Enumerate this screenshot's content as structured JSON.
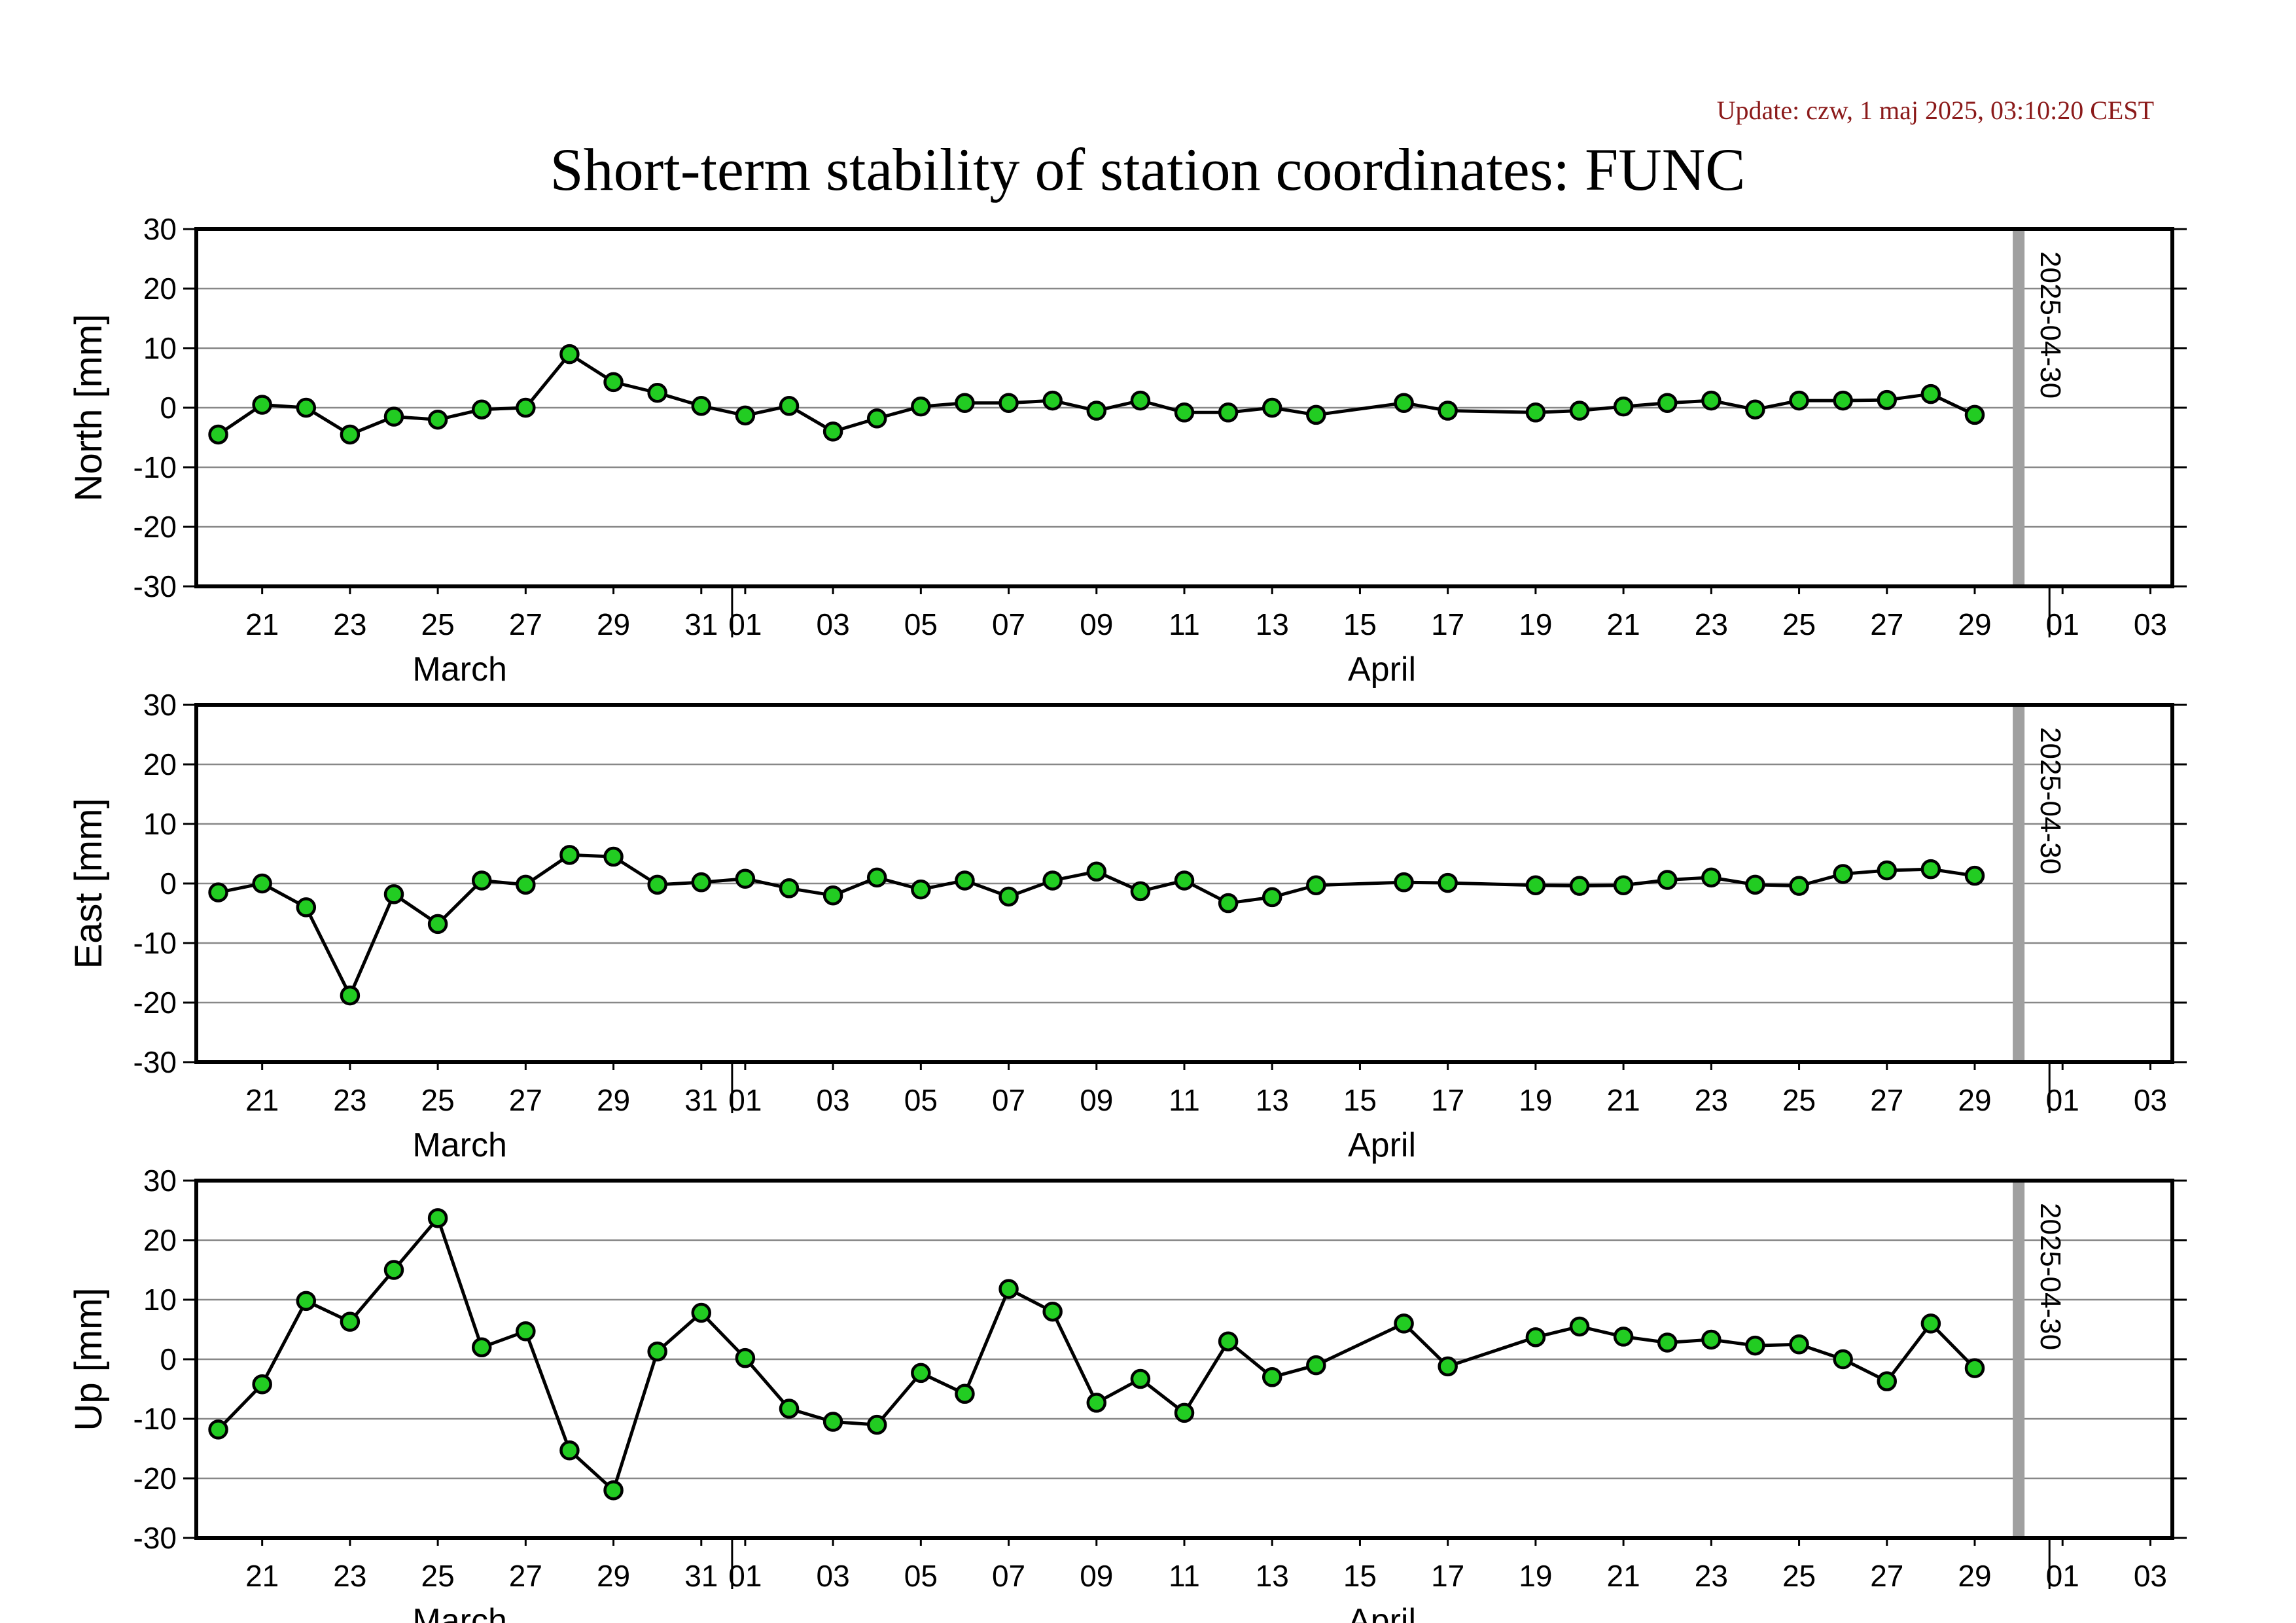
{
  "update_text": "Update: czw, 1 maj 2025, 03:10:20 CEST",
  "title": "Short-term stability of station coordinates: FUNC",
  "colors": {
    "point_fill": "#22cc22",
    "point_stroke": "#000000",
    "line": "#000000",
    "grid": "#888888",
    "marker": "#a0a0a0",
    "update": "#8b1a1a"
  },
  "chart_data": [
    {
      "type": "line",
      "ylabel": "North [mm]",
      "ylim": [
        -30,
        30
      ],
      "yticks": [
        30,
        20,
        10,
        0,
        -10,
        -20,
        -30
      ],
      "x_tick_labels": [
        "21",
        "23",
        "25",
        "27",
        "29",
        "31",
        "01",
        "03",
        "05",
        "07",
        "09",
        "11",
        "13",
        "15",
        "17",
        "19",
        "21",
        "23",
        "25",
        "27",
        "29",
        "01",
        "03"
      ],
      "months": [
        "March",
        "April"
      ],
      "marker_date": "2025-04-30",
      "grid": true,
      "series": [
        {
          "x": [
            "2025-03-20",
            "2025-03-21",
            "2025-03-22",
            "2025-03-23",
            "2025-03-24",
            "2025-03-25",
            "2025-03-26",
            "2025-03-27",
            "2025-03-28",
            "2025-03-29",
            "2025-03-30",
            "2025-03-31",
            "2025-04-01",
            "2025-04-02",
            "2025-04-03",
            "2025-04-04",
            "2025-04-05",
            "2025-04-06",
            "2025-04-07",
            "2025-04-08",
            "2025-04-09",
            "2025-04-10",
            "2025-04-11",
            "2025-04-12",
            "2025-04-13",
            "2025-04-14",
            "2025-04-16",
            "2025-04-17",
            "2025-04-19",
            "2025-04-20",
            "2025-04-21",
            "2025-04-22",
            "2025-04-23",
            "2025-04-24",
            "2025-04-25",
            "2025-04-26",
            "2025-04-27",
            "2025-04-28",
            "2025-04-29"
          ],
          "y": [
            -4.5,
            0.5,
            0,
            -4.5,
            -1.5,
            -2,
            -0.3,
            0,
            9,
            4.3,
            2.5,
            0.3,
            -1.3,
            0.3,
            -4,
            -1.8,
            0.2,
            0.8,
            0.8,
            1.2,
            -0.5,
            1.2,
            -0.8,
            -0.8,
            0,
            -1.2,
            0.8,
            -0.5,
            -0.8,
            -0.5,
            0.2,
            0.8,
            1.2,
            -0.3,
            1.2,
            1.2,
            1.3,
            2.3,
            -1.2
          ]
        }
      ]
    },
    {
      "type": "line",
      "ylabel": "East [mm]",
      "ylim": [
        -30,
        30
      ],
      "yticks": [
        30,
        20,
        10,
        0,
        -10,
        -20,
        -30
      ],
      "x_tick_labels": [
        "21",
        "23",
        "25",
        "27",
        "29",
        "31",
        "01",
        "03",
        "05",
        "07",
        "09",
        "11",
        "13",
        "15",
        "17",
        "19",
        "21",
        "23",
        "25",
        "27",
        "29",
        "01",
        "03"
      ],
      "months": [
        "March",
        "April"
      ],
      "marker_date": "2025-04-30",
      "grid": true,
      "series": [
        {
          "x": [
            "2025-03-20",
            "2025-03-21",
            "2025-03-22",
            "2025-03-23",
            "2025-03-24",
            "2025-03-25",
            "2025-03-26",
            "2025-03-27",
            "2025-03-28",
            "2025-03-29",
            "2025-03-30",
            "2025-03-31",
            "2025-04-01",
            "2025-04-02",
            "2025-04-03",
            "2025-04-04",
            "2025-04-05",
            "2025-04-06",
            "2025-04-07",
            "2025-04-08",
            "2025-04-09",
            "2025-04-10",
            "2025-04-11",
            "2025-04-12",
            "2025-04-13",
            "2025-04-14",
            "2025-04-16",
            "2025-04-17",
            "2025-04-19",
            "2025-04-20",
            "2025-04-21",
            "2025-04-22",
            "2025-04-23",
            "2025-04-24",
            "2025-04-25",
            "2025-04-26",
            "2025-04-27",
            "2025-04-28",
            "2025-04-29"
          ],
          "y": [
            -1.5,
            0,
            -4,
            -18.8,
            -1.8,
            -6.8,
            0.5,
            -0.2,
            4.8,
            4.5,
            -0.2,
            0.2,
            0.8,
            -0.8,
            -2,
            1,
            -1,
            0.5,
            -2.2,
            0.5,
            2,
            -1.3,
            0.5,
            -3.3,
            -2.3,
            -0.3,
            0.2,
            0.1,
            -0.3,
            -0.4,
            -0.3,
            0.6,
            1,
            -0.2,
            -0.4,
            1.6,
            2.2,
            2.4,
            1.3
          ]
        }
      ]
    },
    {
      "type": "line",
      "ylabel": "Up [mm]",
      "ylim": [
        -30,
        30
      ],
      "yticks": [
        30,
        20,
        10,
        0,
        -10,
        -20,
        -30
      ],
      "x_tick_labels": [
        "21",
        "23",
        "25",
        "27",
        "29",
        "31",
        "01",
        "03",
        "05",
        "07",
        "09",
        "11",
        "13",
        "15",
        "17",
        "19",
        "21",
        "23",
        "25",
        "27",
        "29",
        "01",
        "03"
      ],
      "months": [
        "March",
        "April"
      ],
      "marker_date": "2025-04-30",
      "grid": true,
      "series": [
        {
          "x": [
            "2025-03-20",
            "2025-03-21",
            "2025-03-22",
            "2025-03-23",
            "2025-03-24",
            "2025-03-25",
            "2025-03-26",
            "2025-03-27",
            "2025-03-28",
            "2025-03-29",
            "2025-03-30",
            "2025-03-31",
            "2025-04-01",
            "2025-04-02",
            "2025-04-03",
            "2025-04-04",
            "2025-04-05",
            "2025-04-06",
            "2025-04-07",
            "2025-04-08",
            "2025-04-09",
            "2025-04-10",
            "2025-04-11",
            "2025-04-12",
            "2025-04-13",
            "2025-04-14",
            "2025-04-16",
            "2025-04-17",
            "2025-04-19",
            "2025-04-20",
            "2025-04-21",
            "2025-04-22",
            "2025-04-23",
            "2025-04-24",
            "2025-04-25",
            "2025-04-26",
            "2025-04-27",
            "2025-04-28",
            "2025-04-29"
          ],
          "y": [
            -11.8,
            -4.2,
            9.8,
            6.3,
            15,
            23.7,
            2,
            4.7,
            -15.3,
            -22,
            1.3,
            7.8,
            0.2,
            -8.3,
            -10.5,
            -11,
            -2.3,
            -5.8,
            11.8,
            8,
            -7.3,
            -3.3,
            -9,
            3,
            -3,
            -1,
            6,
            -1.2,
            3.7,
            5.5,
            3.8,
            2.8,
            3.3,
            2.3,
            2.5,
            0,
            -3.7,
            6,
            -1.5
          ]
        }
      ]
    }
  ]
}
